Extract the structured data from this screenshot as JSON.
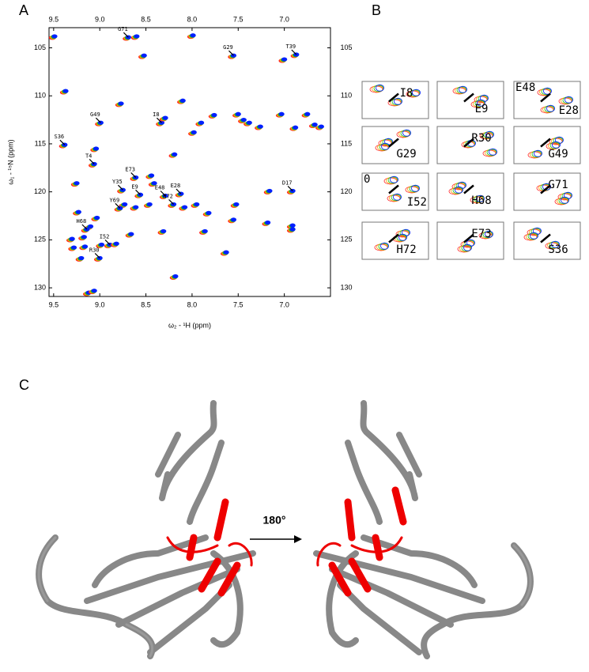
{
  "chart_data": {
    "type": "scatter",
    "xlabel": "ω₂ - ¹H (ppm)",
    "ylabel": "ω₁ - ¹⁵N (ppm)",
    "x": [
      9.49,
      8.69,
      8.6,
      8.52,
      7.55,
      7.99,
      7.0,
      6.87,
      9.37,
      8.77,
      8.1,
      8.99,
      8.33,
      8.29,
      7.9,
      7.98,
      7.76,
      7.5,
      7.44,
      7.38,
      7.26,
      7.03,
      6.88,
      6.75,
      6.67,
      6.6,
      9.38,
      9.04,
      9.06,
      8.19,
      8.44,
      8.61,
      8.41,
      8.75,
      8.56,
      8.29,
      8.12,
      8.2,
      8.08,
      8.73,
      8.78,
      8.61,
      8.46,
      7.95,
      7.82,
      7.52,
      7.55,
      7.18,
      6.91,
      7.16,
      9.25,
      9.23,
      9.1,
      9.03,
      9.14,
      9.17,
      9.3,
      9.28,
      9.16,
      8.98,
      8.89,
      8.82,
      9.0,
      9.2,
      8.66,
      8.31,
      7.86,
      7.63,
      8.18,
      9.12,
      9.06,
      6.91,
      6.91
    ],
    "y": [
      103.8,
      103.9,
      103.8,
      105.8,
      105.8,
      103.7,
      106.2,
      105.7,
      109.5,
      110.8,
      110.5,
      112.8,
      112.8,
      112.3,
      112.8,
      113.8,
      112.0,
      111.9,
      112.5,
      112.8,
      113.2,
      111.9,
      113.3,
      111.9,
      113.0,
      113.2,
      115.1,
      115.5,
      117.1,
      116.1,
      118.3,
      118.5,
      119.1,
      119.8,
      120.3,
      120.4,
      120.2,
      121.3,
      121.6,
      121.3,
      121.7,
      121.6,
      121.3,
      121.3,
      122.2,
      121.3,
      122.9,
      123.2,
      119.9,
      119.9,
      119.1,
      122.1,
      123.6,
      122.7,
      123.9,
      124.7,
      124.9,
      125.8,
      125.7,
      125.5,
      125.5,
      125.4,
      126.9,
      126.9,
      124.4,
      124.1,
      124.1,
      126.3,
      128.8,
      130.5,
      130.3,
      123.5,
      123.9
    ],
    "point_labels": [
      null,
      "G71",
      null,
      null,
      "G29",
      null,
      null,
      "T39",
      null,
      null,
      null,
      "G49",
      "I8",
      null,
      null,
      null,
      null,
      null,
      null,
      null,
      null,
      null,
      null,
      null,
      null,
      null,
      "S36",
      null,
      "T4",
      null,
      null,
      "E73",
      null,
      "Y35",
      "E9",
      "E48",
      "E28",
      "H72",
      null,
      null,
      "Y69",
      null,
      null,
      null,
      null,
      null,
      null,
      null,
      "D17",
      null,
      null,
      null,
      null,
      null,
      "H68",
      null,
      null,
      null,
      null,
      null,
      "I52",
      null,
      "R30",
      null,
      null,
      null,
      null,
      null,
      null,
      null,
      null,
      null,
      null
    ],
    "colors": [
      "#ff2020",
      "#ffa000",
      "#20c020",
      "#0020ff"
    ],
    "xlim": [
      9.55,
      6.5
    ],
    "xticks": [
      9.5,
      {
        "value": 9,
        "label": "9.0"
      },
      8.5,
      {
        "value": 8,
        "label": "8.0"
      },
      7.5,
      {
        "value": 7,
        "label": "7.0"
      }
    ],
    "ylim": [
      102.9,
      130.9
    ],
    "yticks": [
      105,
      110,
      115,
      120,
      125,
      130
    ]
  },
  "panel_labels": [
    "A",
    "B",
    "C"
  ],
  "insets": [
    [
      "I8"
    ],
    [
      "E9"
    ],
    [
      "E48",
      "E28"
    ],
    [
      "G29"
    ],
    [
      "R30"
    ],
    [
      "G49"
    ],
    [
      "0",
      "I52"
    ],
    [
      "H68"
    ],
    [
      "G71"
    ],
    [
      "H72"
    ],
    [
      "E73"
    ],
    [
      "S36"
    ]
  ],
  "rotation_label": "180°"
}
